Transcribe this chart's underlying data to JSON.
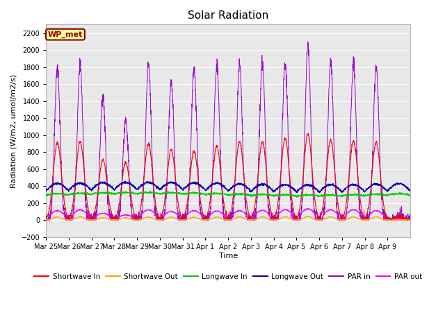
{
  "title": "Solar Radiation",
  "ylabel": "Radiation (W/m2, umol/m2/s)",
  "xlabel": "Time",
  "ylim": [
    -200,
    2300
  ],
  "yticks": [
    -200,
    0,
    200,
    400,
    600,
    800,
    1000,
    1200,
    1400,
    1600,
    1800,
    2000,
    2200
  ],
  "label_text": "WP_met",
  "label_bg": "#FFFF99",
  "label_border": "#8B0000",
  "plot_bg": "#E8E8E8",
  "series": {
    "shortwave_in": {
      "color": "#FF0000",
      "label": "Shortwave In"
    },
    "shortwave_out": {
      "color": "#FFA500",
      "label": "Shortwave Out"
    },
    "longwave_in": {
      "color": "#00CC00",
      "label": "Longwave In"
    },
    "longwave_out": {
      "color": "#0000BB",
      "label": "Longwave Out"
    },
    "par_in": {
      "color": "#9900CC",
      "label": "PAR in"
    },
    "par_out": {
      "color": "#FF00FF",
      "label": "PAR out"
    }
  },
  "xtick_labels": [
    "Mar 25",
    "Mar 26",
    "Mar 27",
    "Mar 28",
    "Mar 29",
    "Mar 30",
    "Mar 31",
    "Apr 1",
    "Apr 2",
    "Apr 3",
    "Apr 4",
    "Apr 5",
    "Apr 6",
    "Apr 7",
    "Apr 8",
    "Apr 9"
  ],
  "num_days": 16,
  "figsize": [
    6.4,
    4.8
  ],
  "dpi": 100
}
